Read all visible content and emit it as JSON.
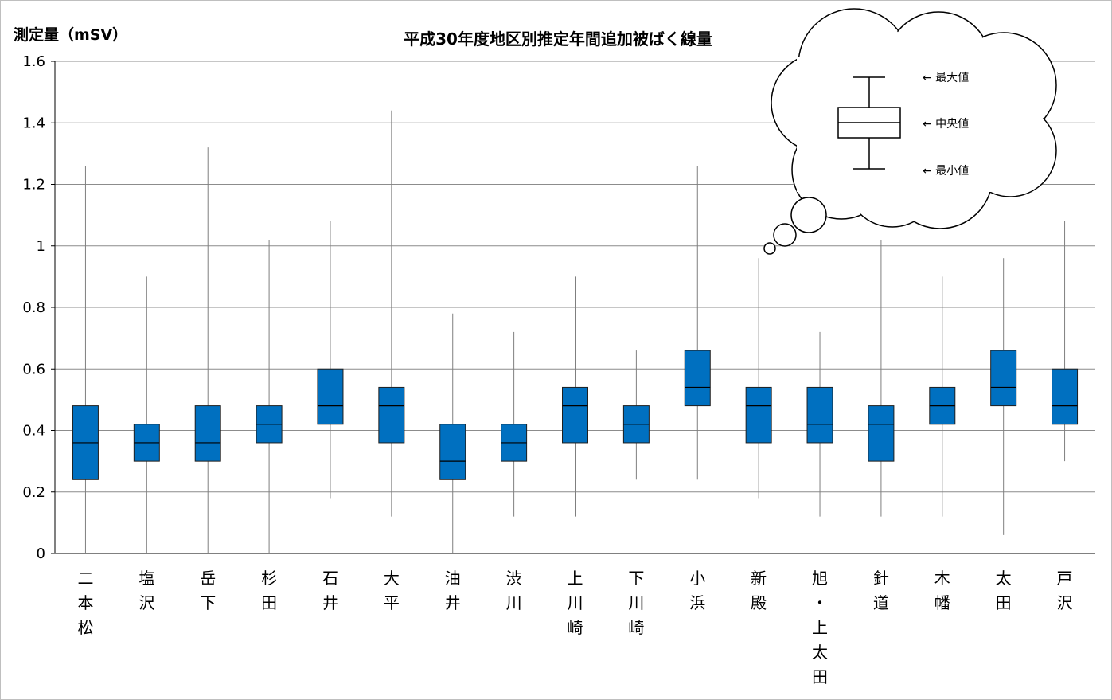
{
  "chart_data": {
    "type": "boxplot",
    "title": "平成30年度地区別推定年間追加被ばく線量",
    "ylabel": "測定量（mSV）",
    "ylim": [
      0,
      1.6
    ],
    "yticks": [
      0,
      0.2,
      0.4,
      0.6,
      0.8,
      1,
      1.2,
      1.4,
      1.6
    ],
    "ytick_labels": [
      "0",
      "0.2",
      "0.4",
      "0.6",
      "0.8",
      "1",
      "1.2",
      "1.4",
      "1.6"
    ],
    "grid": true,
    "box_color": "#0070c0",
    "categories": [
      "二本松",
      "塩沢",
      "岳下",
      "杉田",
      "石井",
      "大平",
      "油井",
      "渋川",
      "上川崎",
      "下川崎",
      "小浜",
      "新殿",
      "旭・上太田",
      "針道",
      "木幡",
      "太田",
      "戸沢"
    ],
    "min": [
      0,
      0,
      0,
      0,
      0.18,
      0.12,
      0,
      0.12,
      0.12,
      0.24,
      0.24,
      0.18,
      0.12,
      0.12,
      0.12,
      0.06,
      0.3
    ],
    "q1": [
      0.24,
      0.3,
      0.3,
      0.36,
      0.42,
      0.36,
      0.24,
      0.3,
      0.36,
      0.36,
      0.48,
      0.36,
      0.36,
      0.3,
      0.42,
      0.48,
      0.42
    ],
    "median": [
      0.36,
      0.36,
      0.36,
      0.42,
      0.48,
      0.48,
      0.3,
      0.36,
      0.48,
      0.42,
      0.54,
      0.48,
      0.42,
      0.42,
      0.48,
      0.54,
      0.48
    ],
    "q3": [
      0.48,
      0.42,
      0.48,
      0.48,
      0.6,
      0.54,
      0.42,
      0.42,
      0.54,
      0.48,
      0.66,
      0.54,
      0.54,
      0.48,
      0.54,
      0.66,
      0.6
    ],
    "max": [
      1.26,
      0.9,
      1.32,
      1.02,
      1.08,
      1.44,
      0.78,
      0.72,
      0.9,
      0.66,
      1.26,
      0.96,
      0.72,
      1.02,
      0.9,
      0.96,
      1.08
    ],
    "legend_callout": {
      "max_label": "← 最大値",
      "median_label": "← 中央値",
      "min_label": "← 最小値"
    }
  }
}
